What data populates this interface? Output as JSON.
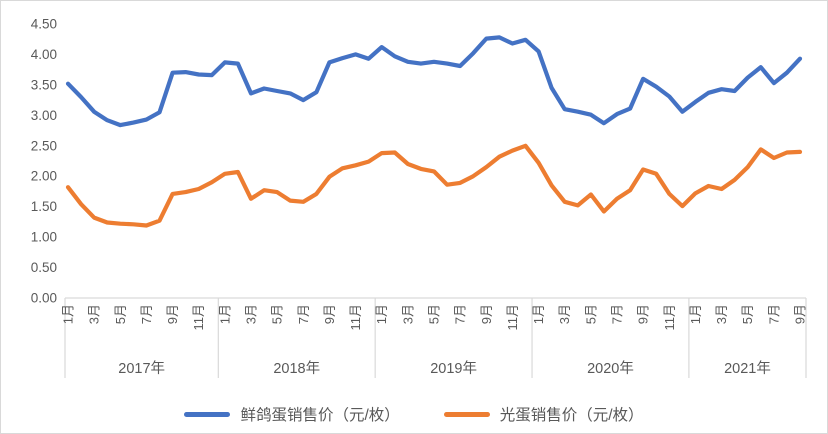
{
  "chart_data": {
    "type": "line",
    "title": "",
    "grid": false,
    "legend_position": "bottom",
    "y_axis": {
      "min": 0,
      "max": 4.5,
      "step": 0.5,
      "tick_labels": [
        "0.00",
        "0.50",
        "1.00",
        "1.50",
        "2.00",
        "2.50",
        "3.00",
        "3.50",
        "4.00",
        "4.50"
      ]
    },
    "x_axis": {
      "years": [
        {
          "label": "2017年",
          "months": 12,
          "month_labels": [
            "1月",
            "3月",
            "5月",
            "7月",
            "9月",
            "11月"
          ],
          "label_month_offsets": [
            0,
            2,
            4,
            6,
            8,
            10
          ]
        },
        {
          "label": "2018年",
          "months": 12,
          "month_labels": [
            "1月",
            "3月",
            "5月",
            "7月",
            "9月",
            "11月"
          ],
          "label_month_offsets": [
            0,
            2,
            4,
            6,
            8,
            10
          ]
        },
        {
          "label": "2019年",
          "months": 12,
          "month_labels": [
            "1月",
            "3月",
            "5月",
            "7月",
            "9月",
            "11月"
          ],
          "label_month_offsets": [
            0,
            2,
            4,
            6,
            8,
            10
          ]
        },
        {
          "label": "2020年",
          "months": 12,
          "month_labels": [
            "1月",
            "3月",
            "5月",
            "7月",
            "9月",
            "11月"
          ],
          "label_month_offsets": [
            0,
            2,
            4,
            6,
            8,
            10
          ]
        },
        {
          "label": "2021年",
          "months": 9,
          "month_labels": [
            "1月",
            "3月",
            "5月",
            "7月",
            "9月"
          ],
          "label_month_offsets": [
            0,
            2,
            4,
            6,
            8
          ]
        }
      ]
    },
    "series": [
      {
        "name": "鲜鸽蛋销售价（元/枚）",
        "color": "#4472C4",
        "values": [
          3.52,
          3.3,
          3.06,
          2.92,
          2.84,
          2.88,
          2.93,
          3.05,
          3.7,
          3.71,
          3.67,
          3.66,
          3.87,
          3.85,
          3.36,
          3.44,
          3.4,
          3.36,
          3.25,
          3.38,
          3.87,
          3.94,
          4.0,
          3.93,
          4.12,
          3.97,
          3.88,
          3.85,
          3.88,
          3.85,
          3.81,
          4.02,
          4.26,
          4.28,
          4.18,
          4.24,
          4.05,
          3.45,
          3.1,
          3.06,
          3.01,
          2.87,
          3.02,
          3.11,
          3.6,
          3.47,
          3.31,
          3.06,
          3.22,
          3.37,
          3.43,
          3.4,
          3.62,
          3.79,
          3.53,
          3.7,
          3.93
        ]
      },
      {
        "name": "光蛋销售价（元/枚）",
        "color": "#ED7D31",
        "values": [
          1.82,
          1.54,
          1.32,
          1.24,
          1.22,
          1.21,
          1.19,
          1.27,
          1.71,
          1.74,
          1.79,
          1.9,
          2.04,
          2.07,
          1.63,
          1.77,
          1.74,
          1.6,
          1.58,
          1.71,
          1.99,
          2.13,
          2.18,
          2.24,
          2.38,
          2.39,
          2.2,
          2.12,
          2.08,
          1.86,
          1.89,
          2.0,
          2.15,
          2.32,
          2.42,
          2.5,
          2.22,
          1.85,
          1.58,
          1.52,
          1.7,
          1.42,
          1.63,
          1.77,
          2.11,
          2.04,
          1.71,
          1.51,
          1.72,
          1.84,
          1.79,
          1.94,
          2.15,
          2.44,
          2.3,
          2.39,
          2.4
        ]
      }
    ],
    "style": {
      "axis_line_color": "#D9D9D9",
      "tick_text_color": "#595959",
      "line_width": 4.2
    }
  }
}
